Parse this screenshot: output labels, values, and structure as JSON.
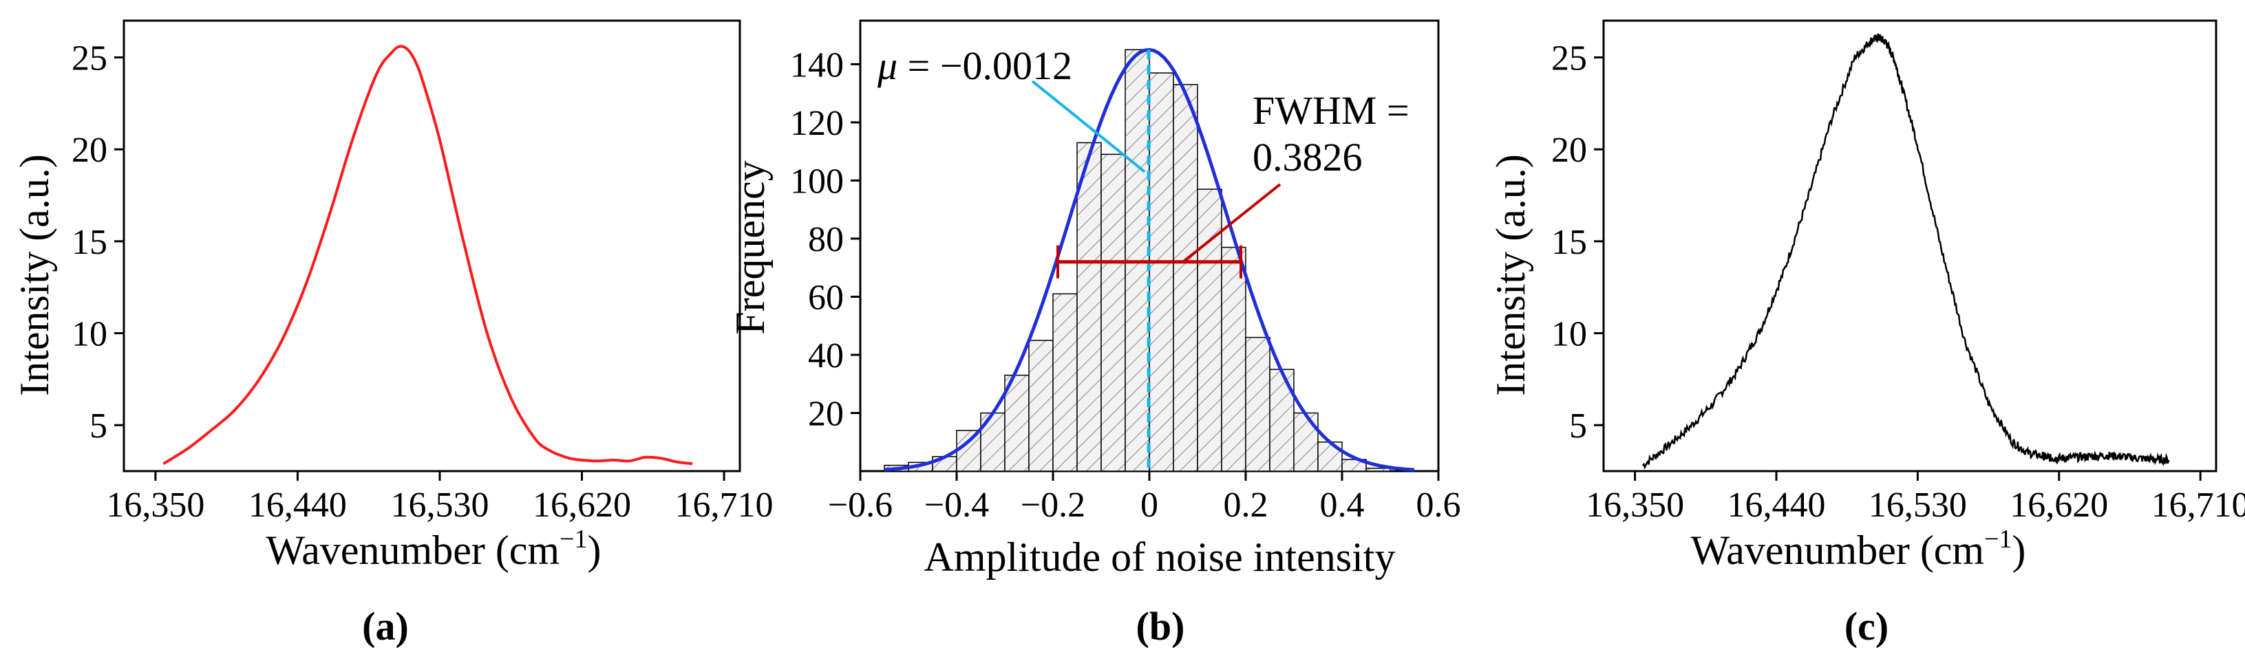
{
  "chart_data": [
    {
      "id": "a",
      "panel_label": "(a)",
      "type": "line",
      "color": "#ff1a1a",
      "xlabel": "Wavenumber (cm",
      "xlabel_sup": "−1",
      "xlabel_close": ")",
      "ylabel": "Intensity (a.u.)",
      "xlim": [
        16330,
        16720
      ],
      "ylim": [
        2.5,
        27
      ],
      "xticks": [
        16350,
        16440,
        16530,
        16620,
        16710
      ],
      "xtick_labels": [
        "16,350",
        "16,440",
        "16,530",
        "16,620",
        "16,710"
      ],
      "yticks": [
        5,
        10,
        15,
        20,
        25
      ],
      "ytick_labels": [
        "5",
        "10",
        "15",
        "20",
        "25"
      ],
      "x": [
        16355,
        16370,
        16385,
        16400,
        16415,
        16430,
        16445,
        16460,
        16475,
        16490,
        16500,
        16505,
        16510,
        16515,
        16520,
        16530,
        16545,
        16560,
        16575,
        16590,
        16600,
        16610,
        16615,
        16620,
        16630,
        16640,
        16650,
        16660,
        16670,
        16680,
        16690
      ],
      "y": [
        2.9,
        3.7,
        4.7,
        5.8,
        7.4,
        9.6,
        12.6,
        16.4,
        20.6,
        24.1,
        25.3,
        25.6,
        25.4,
        24.7,
        23.5,
        20.5,
        15.0,
        10.0,
        6.5,
        4.3,
        3.6,
        3.25,
        3.15,
        3.1,
        3.05,
        3.1,
        3.05,
        3.25,
        3.2,
        3.0,
        2.9
      ]
    },
    {
      "id": "b",
      "panel_label": "(b)",
      "type": "bar",
      "subtype": "histogram_with_gaussian_fit",
      "bar_color": "#000000",
      "fit_color": "#1f2fd9",
      "mean_line_color": "#18b4e8",
      "fwhm_color": "#c00000",
      "xlabel": "Amplitude of noise intensity",
      "ylabel": "Frequency",
      "xlim": [
        -0.6,
        0.6
      ],
      "ylim": [
        0,
        155
      ],
      "xticks": [
        -0.6,
        -0.4,
        -0.2,
        0,
        0.2,
        0.4,
        0.6
      ],
      "xtick_labels": [
        "−0.6",
        "−0.4",
        "−0.2",
        "0",
        "0.2",
        "0.4",
        "0.6"
      ],
      "yticks": [
        20,
        40,
        60,
        80,
        100,
        120,
        140
      ],
      "ytick_labels": [
        "20",
        "40",
        "60",
        "80",
        "100",
        "120",
        "140"
      ],
      "bin_width": 0.05,
      "bin_starts": [
        -0.55,
        -0.5,
        -0.45,
        -0.4,
        -0.35,
        -0.3,
        -0.25,
        -0.2,
        -0.15,
        -0.1,
        -0.05,
        0,
        0.05,
        0.1,
        0.15,
        0.2,
        0.25,
        0.3,
        0.35,
        0.4,
        0.45
      ],
      "values": [
        2,
        3,
        5,
        14,
        20,
        33,
        45,
        61,
        113,
        109,
        145,
        137,
        133,
        97,
        77,
        46,
        35,
        20,
        10,
        4,
        1
      ],
      "fit": {
        "mu": -0.0012,
        "sigma": 0.1625,
        "peak": 145
      },
      "fwhm_level": 72,
      "fwhm_range": [
        -0.19,
        0.19
      ],
      "mean_annotation": {
        "symbol": "μ",
        "text": " = −0.0012"
      },
      "fwhm_annotation": {
        "line1": "FWHM =",
        "line2": "0.3826"
      }
    },
    {
      "id": "c",
      "panel_label": "(c)",
      "type": "line",
      "color": "#000000",
      "xlabel": "Wavenumber (cm",
      "xlabel_sup": "−1",
      "xlabel_close": ")",
      "ylabel": "Intensity (a.u.)",
      "xlim": [
        16330,
        16720
      ],
      "ylim": [
        2.5,
        27
      ],
      "xticks": [
        16350,
        16440,
        16530,
        16620,
        16710
      ],
      "xtick_labels": [
        "16,350",
        "16,440",
        "16,530",
        "16,620",
        "16,710"
      ],
      "yticks": [
        5,
        10,
        15,
        20,
        25
      ],
      "ytick_labels": [
        "5",
        "10",
        "15",
        "20",
        "25"
      ],
      "x": [
        16355,
        16370,
        16385,
        16400,
        16415,
        16430,
        16445,
        16460,
        16475,
        16490,
        16500,
        16505,
        16510,
        16515,
        16520,
        16530,
        16545,
        16560,
        16575,
        16590,
        16600,
        16610,
        16615,
        16620,
        16630,
        16640,
        16650,
        16660,
        16670,
        16680,
        16690
      ],
      "y": [
        2.8,
        3.8,
        4.9,
        6.2,
        7.9,
        10.2,
        13.4,
        17.3,
        21.6,
        25.0,
        25.9,
        26.1,
        25.8,
        24.9,
        23.4,
        20.2,
        14.6,
        9.6,
        6.2,
        4.1,
        3.5,
        3.3,
        3.2,
        3.2,
        3.25,
        3.3,
        3.35,
        3.3,
        3.2,
        3.15,
        3.1
      ]
    }
  ]
}
